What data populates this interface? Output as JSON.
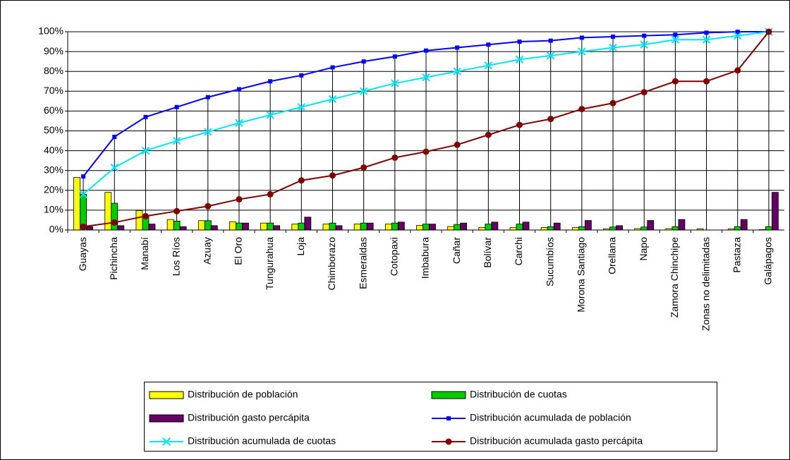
{
  "chart_data": {
    "type": "bar",
    "categories": [
      "Guayas",
      "Pichincha",
      "Manabí",
      "Los Ríos",
      "Azuay",
      "El Oro",
      "Tungurahua",
      "Loja",
      "Chimborazo",
      "Esmeraldas",
      "Cotopaxi",
      "Imbabura",
      "Cañar",
      "Bolívar",
      "Carchi",
      "Sucumbíos",
      "Morona Santiago",
      "Orellana",
      "Napo",
      "Zamora Chinchipe",
      "Zonas no delimitadas",
      "Pastaza",
      "Galápagos"
    ],
    "series": [
      {
        "name": "Distribución de población",
        "type": "bar",
        "color": "#ffff00",
        "values": [
          26.5,
          19,
          9.8,
          5.3,
          4.7,
          4.2,
          3.5,
          3,
          3,
          3,
          3,
          2.3,
          1.8,
          1.3,
          1.2,
          1.3,
          1.2,
          0.6,
          0.7,
          0.7,
          0.6,
          0.6,
          0.2
        ]
      },
      {
        "name": "Distribución de cuotas",
        "type": "bar",
        "color": "#00cc00",
        "values": [
          18,
          13.5,
          7,
          4.5,
          4.7,
          3.5,
          3.5,
          3.5,
          3.5,
          3.5,
          3.5,
          3,
          2.8,
          3,
          3,
          1.7,
          1.7,
          1.5,
          1.5,
          1.7,
          0,
          1.7,
          1.7
        ]
      },
      {
        "name": "Distribución gasto percápita",
        "type": "bar",
        "color": "#660066",
        "values": [
          1.7,
          2.2,
          3,
          1.7,
          2.2,
          3.5,
          2.2,
          6.5,
          2.2,
          3.5,
          4,
          3,
          3.5,
          4,
          4,
          3.5,
          4.8,
          2.2,
          4.8,
          5.3,
          0,
          5.3,
          19
        ]
      },
      {
        "name": "Distribución acumulada de población",
        "type": "line",
        "marker": "square",
        "color": "#0000ff",
        "values": [
          27,
          47,
          57,
          62,
          67,
          71,
          75,
          78,
          82,
          85,
          87.5,
          90.5,
          92,
          93.5,
          95,
          95.5,
          97,
          97.5,
          98,
          98.5,
          99.5,
          100,
          100
        ]
      },
      {
        "name": "Distribución acumulada de cuotas",
        "type": "line",
        "marker": "x",
        "color": "#00e5ff",
        "values": [
          18,
          31.5,
          40,
          45,
          49.5,
          54,
          58,
          62,
          66,
          70,
          74,
          77,
          80,
          83,
          86,
          88,
          90,
          92,
          93.5,
          96,
          96,
          98,
          100
        ]
      },
      {
        "name": "Distribución acumulada gasto percápita",
        "type": "line",
        "marker": "circle",
        "color": "#800000",
        "values": [
          1.7,
          3.8,
          7,
          9.5,
          12,
          15.5,
          18,
          25,
          27.5,
          31.5,
          36.5,
          39.5,
          43,
          48,
          53,
          56,
          61,
          64,
          69.5,
          75,
          75,
          80.5,
          100
        ]
      }
    ],
    "ylim": [
      0,
      100
    ],
    "yticks": [
      {
        "value": 0,
        "label": "0%"
      },
      {
        "value": 10,
        "label": "10%"
      },
      {
        "value": 20,
        "label": "20%"
      },
      {
        "value": 30,
        "label": "30%"
      },
      {
        "value": 40,
        "label": "40%"
      },
      {
        "value": 50,
        "label": "50%"
      },
      {
        "value": 60,
        "label": "60%"
      },
      {
        "value": 70,
        "label": "70%"
      },
      {
        "value": 80,
        "label": "80%"
      },
      {
        "value": 90,
        "label": "90%"
      },
      {
        "value": 100,
        "label": "100%"
      }
    ],
    "grid": true,
    "drop_lines": true
  }
}
